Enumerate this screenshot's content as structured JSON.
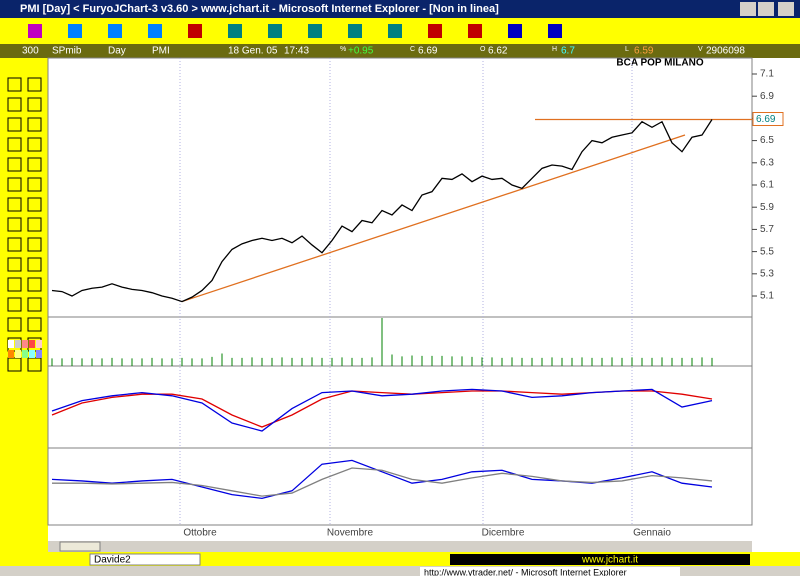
{
  "window": {
    "title": "PMI [Day] < FuryoJChart-3 v3.60 > www.jchart.it - Microsoft Internet Explorer - [Non in linea]"
  },
  "infobar": {
    "period": "300",
    "index": "SPmib",
    "timeframe": "Day",
    "symbol": "PMI",
    "date": "18 Gen. 05",
    "time": "17:43",
    "change_label": "%",
    "change": "+0.95",
    "close_label": "C",
    "close": "6.69",
    "open_label": "O",
    "open": "6.62",
    "high_label": "H",
    "high": "6.7",
    "low_label": "L",
    "low": "6.59",
    "volume_label": "V",
    "volume": "2906098"
  },
  "chart_data": [
    {
      "type": "line",
      "title": "BCA POP MILANO",
      "color": "#000000",
      "values": [
        5.15,
        5.14,
        5.1,
        5.15,
        5.17,
        5.18,
        5.21,
        5.18,
        5.16,
        5.15,
        5.13,
        5.1,
        5.08,
        5.05,
        5.09,
        5.15,
        5.24,
        5.41,
        5.52,
        5.57,
        5.6,
        5.62,
        5.6,
        5.62,
        5.58,
        5.64,
        5.56,
        5.49,
        5.6,
        5.73,
        5.68,
        5.78,
        5.76,
        5.87,
        5.83,
        5.92,
        5.87,
        6.01,
        6.04,
        6.16,
        6.15,
        6.2,
        6.13,
        6.18,
        6.15,
        6.16,
        6.1,
        6.07,
        6.16,
        6.25,
        6.28,
        6.27,
        6.24,
        6.4,
        6.5,
        6.48,
        6.53,
        6.55,
        6.57,
        6.67,
        6.62,
        6.67,
        6.48,
        6.4,
        6.53,
        6.55,
        6.69
      ],
      "xlim": [
        -0.4,
        70
      ],
      "ylim": [
        4.92,
        7.244
      ],
      "yticks": [
        5.1,
        5.3,
        5.5,
        5.7,
        5.9,
        6.1,
        6.3,
        6.5,
        6.7,
        6.9,
        7.1
      ],
      "xticks": [
        {
          "value": 12.8,
          "label": "Ottobre"
        },
        {
          "value": 27.8,
          "label": "Novembre"
        },
        {
          "value": 43.1,
          "label": "Dicembre"
        },
        {
          "value": 58,
          "label": "Gennaio"
        }
      ],
      "trendlines": [
        {
          "x": [
            13,
            63.3
          ],
          "y": [
            5.05,
            6.55
          ],
          "color": "#e07020"
        },
        {
          "x": [
            48.3,
            70
          ],
          "y": [
            6.69,
            6.69
          ],
          "color": "#e07020"
        }
      ]
    },
    {
      "type": "bar",
      "color": "#008000",
      "xlim": [
        -0.4,
        70
      ],
      "ylim": [
        0,
        100
      ],
      "values": [
        16,
        16,
        17,
        16,
        16,
        16,
        17,
        16,
        16,
        16,
        17,
        16,
        16,
        17,
        16,
        16,
        19,
        26,
        17,
        17,
        18,
        17,
        17,
        18,
        17,
        17,
        18,
        17,
        17,
        18,
        17,
        17,
        18,
        100,
        24,
        20,
        22,
        21,
        21,
        21,
        20,
        20,
        19,
        18,
        18,
        17,
        18,
        17,
        17,
        17,
        18,
        17,
        17,
        18,
        17,
        17,
        18,
        17,
        18,
        17,
        17,
        18,
        17,
        17,
        17,
        18,
        17
      ]
    },
    {
      "type": "line",
      "xlim": [
        -0.4,
        70
      ],
      "ylim": [
        0,
        100
      ],
      "x": [
        0,
        3,
        6,
        9,
        12,
        15,
        18,
        21,
        24,
        27,
        30,
        33,
        36,
        39,
        42,
        45,
        48,
        51,
        54,
        57,
        60,
        63,
        66
      ],
      "series": [
        {
          "color": "#e00000",
          "values": [
            40,
            55,
            62,
            66,
            66,
            60,
            40,
            25,
            40,
            60,
            70,
            68,
            66,
            68,
            70,
            70,
            68,
            66,
            68,
            70,
            70,
            66,
            60
          ]
        },
        {
          "color": "#0000e0",
          "values": [
            45,
            58,
            64,
            68,
            64,
            55,
            30,
            20,
            48,
            68,
            70,
            64,
            66,
            70,
            72,
            70,
            62,
            64,
            68,
            70,
            72,
            50,
            58
          ]
        }
      ]
    },
    {
      "type": "line",
      "xlim": [
        -0.4,
        70
      ],
      "ylim": [
        0,
        100
      ],
      "x": [
        0,
        3,
        6,
        9,
        12,
        15,
        18,
        21,
        24,
        27,
        30,
        33,
        36,
        39,
        42,
        45,
        48,
        51,
        54,
        57,
        60,
        63,
        66
      ],
      "series": [
        {
          "color": "#0000e0",
          "values": [
            60,
            58,
            55,
            58,
            60,
            50,
            40,
            35,
            45,
            80,
            85,
            70,
            55,
            60,
            70,
            72,
            60,
            58,
            55,
            62,
            70,
            55,
            50
          ]
        },
        {
          "color": "#808080",
          "values": [
            55,
            55,
            54,
            55,
            56,
            52,
            45,
            38,
            42,
            60,
            75,
            72,
            60,
            55,
            62,
            68,
            64,
            58,
            56,
            58,
            65,
            62,
            58
          ]
        }
      ]
    }
  ],
  "status": {
    "user": "Davide2",
    "site": "www.jchart.it",
    "taskbar": "http://www.ytrader.net/ - Microsoft Internet Explorer"
  }
}
